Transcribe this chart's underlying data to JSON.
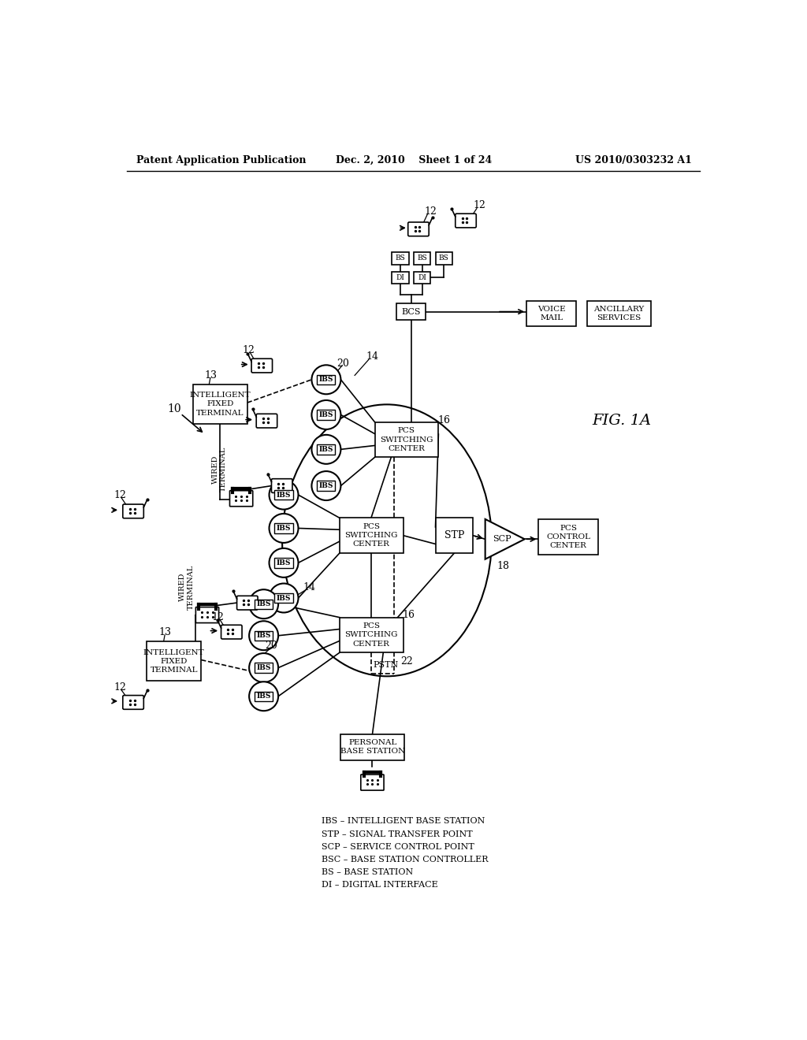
{
  "bg_color": "#ffffff",
  "header_left": "Patent Application Publication",
  "header_mid": "Dec. 2, 2010    Sheet 1 of 24",
  "header_right": "US 2010/0303232 A1",
  "fig_label": "FIG. 1A",
  "legend": [
    "IBS – INTELLIGENT BASE STATION",
    "STP – SIGNAL TRANSFER POINT",
    "SCP – SERVICE CONTROL POINT",
    "BSC – BASE STATION CONTROLLER",
    "BS – BASE STATION",
    "DI – DIGITAL INTERFACE"
  ]
}
